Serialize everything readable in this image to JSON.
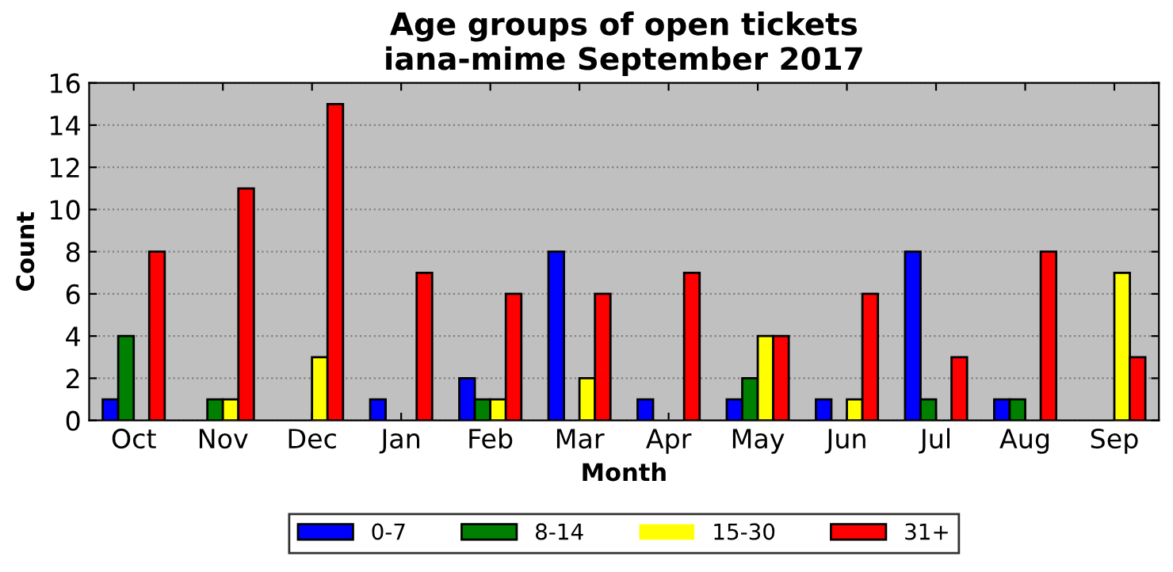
{
  "chart_data": {
    "type": "bar",
    "title": "Age groups of open tickets\niana-mime September 2017",
    "xlabel": "Month",
    "ylabel": "Count",
    "categories": [
      "Oct",
      "Nov",
      "Dec",
      "Jan",
      "Feb",
      "Mar",
      "Apr",
      "May",
      "Jun",
      "Jul",
      "Aug",
      "Sep"
    ],
    "series": [
      {
        "name": "0-7",
        "color": "#0000ff",
        "values": [
          1,
          0,
          0,
          1,
          2,
          8,
          1,
          1,
          1,
          8,
          1,
          0
        ]
      },
      {
        "name": "8-14",
        "color": "#008000",
        "values": [
          4,
          1,
          0,
          0,
          1,
          0,
          0,
          2,
          0,
          1,
          1,
          0
        ]
      },
      {
        "name": "15-30",
        "color": "#ffff00",
        "values": [
          0,
          1,
          3,
          0,
          1,
          2,
          0,
          4,
          1,
          0,
          0,
          7
        ]
      },
      {
        "name": "31+",
        "color": "#ff0000",
        "values": [
          8,
          11,
          15,
          7,
          6,
          6,
          7,
          4,
          6,
          3,
          8,
          3
        ]
      }
    ],
    "ylim": [
      0,
      16
    ],
    "yticks": [
      0,
      2,
      4,
      6,
      8,
      10,
      12,
      14,
      16
    ],
    "grid": "y",
    "legend": "bottom"
  }
}
